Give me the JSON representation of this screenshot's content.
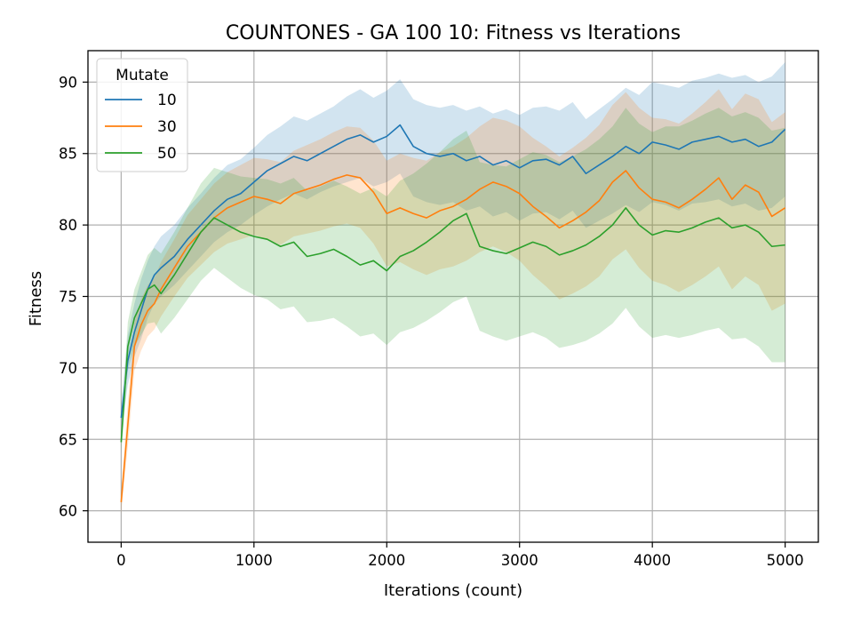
{
  "chart_data": {
    "type": "line",
    "title": "COUNTONES - GA 100 10: Fitness vs Iterations",
    "xlabel": "Iterations (count)",
    "ylabel": "Fitness",
    "xlim": [
      -250,
      5250
    ],
    "ylim": [
      57.8,
      92.2
    ],
    "xticks": [
      0,
      1000,
      2000,
      3000,
      4000,
      5000
    ],
    "yticks": [
      60,
      65,
      70,
      75,
      80,
      85,
      90
    ],
    "grid": true,
    "legend": {
      "title": "Mutate",
      "placement": "top-left"
    },
    "series": [
      {
        "name": "10",
        "color": "#1f77b4",
        "band_opacity": 0.2,
        "x": [
          0,
          50,
          100,
          150,
          200,
          250,
          300,
          400,
          500,
          600,
          700,
          800,
          900,
          1000,
          1100,
          1200,
          1300,
          1400,
          1500,
          1600,
          1700,
          1800,
          1900,
          2000,
          2100,
          2200,
          2300,
          2400,
          2500,
          2600,
          2700,
          2800,
          2900,
          3000,
          3100,
          3200,
          3300,
          3400,
          3500,
          3600,
          3700,
          3800,
          3900,
          4000,
          4100,
          4200,
          4300,
          4400,
          4500,
          4600,
          4700,
          4800,
          4900,
          5000
        ],
        "y": [
          66.5,
          70.5,
          72.5,
          74,
          75.5,
          76.5,
          77,
          77.8,
          79,
          80,
          81,
          81.8,
          82.2,
          83,
          83.8,
          84.3,
          84.8,
          84.5,
          85,
          85.5,
          86,
          86.3,
          85.8,
          86.2,
          87,
          85.5,
          85,
          84.8,
          85,
          84.5,
          84.8,
          84.2,
          84.5,
          84,
          84.5,
          84.6,
          84.2,
          84.8,
          83.6,
          84.2,
          84.8,
          85.5,
          85,
          85.8,
          85.6,
          85.3,
          85.8,
          86,
          86.2,
          85.8,
          86,
          85.5,
          85.8,
          86.7
        ],
        "band": [
          [
            65.5,
            67.5
          ],
          [
            68.8,
            72.3
          ],
          [
            70.8,
            74.5
          ],
          [
            72,
            76.2
          ],
          [
            73.5,
            77.5
          ],
          [
            74.5,
            78.5
          ],
          [
            75,
            79.2
          ],
          [
            75.8,
            80
          ],
          [
            76.8,
            81.2
          ],
          [
            77.8,
            82.2
          ],
          [
            78.8,
            83.3
          ],
          [
            79.5,
            84.2
          ],
          [
            80,
            84.6
          ],
          [
            80.7,
            85.4
          ],
          [
            81.3,
            86.3
          ],
          [
            81.8,
            86.9
          ],
          [
            82.2,
            87.6
          ],
          [
            81.8,
            87.3
          ],
          [
            82.3,
            87.8
          ],
          [
            82.7,
            88.3
          ],
          [
            83,
            89
          ],
          [
            83.3,
            89.5
          ],
          [
            82.7,
            88.9
          ],
          [
            83,
            89.4
          ],
          [
            83.6,
            90.2
          ],
          [
            82,
            88.8
          ],
          [
            81.6,
            88.4
          ],
          [
            81.4,
            88.2
          ],
          [
            81.6,
            88.4
          ],
          [
            81,
            88
          ],
          [
            81.3,
            88.3
          ],
          [
            80.6,
            87.8
          ],
          [
            80.9,
            88.1
          ],
          [
            80.3,
            87.7
          ],
          [
            80.8,
            88.2
          ],
          [
            80.9,
            88.3
          ],
          [
            80.4,
            88
          ],
          [
            81,
            88.6
          ],
          [
            79.8,
            87.4
          ],
          [
            80.3,
            88.1
          ],
          [
            80.8,
            88.8
          ],
          [
            81.4,
            89.6
          ],
          [
            80.9,
            89.1
          ],
          [
            81.6,
            90
          ],
          [
            81.4,
            89.8
          ],
          [
            81,
            89.6
          ],
          [
            81.5,
            90.1
          ],
          [
            81.6,
            90.3
          ],
          [
            81.8,
            90.6
          ],
          [
            81.3,
            90.3
          ],
          [
            81.5,
            90.5
          ],
          [
            81,
            90
          ],
          [
            81.2,
            90.4
          ],
          [
            82,
            91.4
          ]
        ]
      },
      {
        "name": "30",
        "color": "#ff7f0e",
        "band_opacity": 0.2,
        "x": [
          0,
          50,
          100,
          150,
          200,
          250,
          300,
          400,
          500,
          600,
          700,
          800,
          900,
          1000,
          1100,
          1200,
          1300,
          1400,
          1500,
          1600,
          1700,
          1800,
          1900,
          2000,
          2100,
          2200,
          2300,
          2400,
          2500,
          2600,
          2700,
          2800,
          2900,
          3000,
          3100,
          3200,
          3300,
          3400,
          3500,
          3600,
          3700,
          3800,
          3900,
          4000,
          4100,
          4200,
          4300,
          4400,
          4500,
          4600,
          4700,
          4800,
          4900,
          5000
        ],
        "y": [
          60.6,
          66,
          71.5,
          73,
          74,
          74.5,
          75.5,
          77,
          78.5,
          79.5,
          80.5,
          81.2,
          81.6,
          82,
          81.8,
          81.5,
          82.2,
          82.5,
          82.8,
          83.2,
          83.5,
          83.3,
          82.3,
          80.8,
          81.2,
          80.8,
          80.5,
          81,
          81.3,
          81.8,
          82.5,
          83,
          82.7,
          82.2,
          81.3,
          80.6,
          79.8,
          80.3,
          80.9,
          81.7,
          83,
          83.8,
          82.6,
          81.8,
          81.6,
          81.2,
          81.8,
          82.5,
          83.3,
          81.8,
          82.8,
          82.3,
          80.6,
          81.2
        ],
        "band": [
          [
            59.8,
            61.4
          ],
          [
            64.5,
            67.5
          ],
          [
            69.8,
            73.2
          ],
          [
            71.2,
            74.8
          ],
          [
            72.2,
            75.8
          ],
          [
            72.7,
            76.3
          ],
          [
            73.6,
            77.4
          ],
          [
            75,
            79
          ],
          [
            76.3,
            80.7
          ],
          [
            77.2,
            81.8
          ],
          [
            78.1,
            82.9
          ],
          [
            78.7,
            83.7
          ],
          [
            79,
            84.2
          ],
          [
            79.3,
            84.7
          ],
          [
            79,
            84.6
          ],
          [
            78.6,
            84.4
          ],
          [
            79.2,
            85.2
          ],
          [
            79.4,
            85.6
          ],
          [
            79.6,
            86
          ],
          [
            79.9,
            86.5
          ],
          [
            80.1,
            86.9
          ],
          [
            79.8,
            86.8
          ],
          [
            78.7,
            85.9
          ],
          [
            77.1,
            84.5
          ],
          [
            77.4,
            85
          ],
          [
            76.9,
            84.7
          ],
          [
            76.5,
            84.5
          ],
          [
            76.9,
            85.1
          ],
          [
            77.1,
            85.5
          ],
          [
            77.5,
            86.1
          ],
          [
            78.1,
            86.9
          ],
          [
            78.5,
            87.5
          ],
          [
            78.1,
            87.3
          ],
          [
            77.5,
            86.9
          ],
          [
            76.5,
            86.1
          ],
          [
            75.7,
            85.5
          ],
          [
            74.8,
            84.8
          ],
          [
            75.2,
            85.4
          ],
          [
            75.7,
            86.1
          ],
          [
            76.4,
            87
          ],
          [
            77.6,
            88.4
          ],
          [
            78.3,
            89.3
          ],
          [
            77,
            88.2
          ],
          [
            76.1,
            87.5
          ],
          [
            75.8,
            87.4
          ],
          [
            75.3,
            87.1
          ],
          [
            75.8,
            87.8
          ],
          [
            76.4,
            88.6
          ],
          [
            77.1,
            89.5
          ],
          [
            75.5,
            88.1
          ],
          [
            76.4,
            89.2
          ],
          [
            75.8,
            88.8
          ],
          [
            74,
            87.2
          ],
          [
            74.5,
            87.9
          ]
        ]
      },
      {
        "name": "50",
        "color": "#2ca02c",
        "band_opacity": 0.2,
        "x": [
          0,
          50,
          100,
          150,
          200,
          250,
          300,
          400,
          500,
          600,
          700,
          800,
          900,
          1000,
          1100,
          1200,
          1300,
          1400,
          1500,
          1600,
          1700,
          1800,
          1900,
          2000,
          2100,
          2200,
          2300,
          2400,
          2500,
          2600,
          2700,
          2800,
          2900,
          3000,
          3100,
          3200,
          3300,
          3400,
          3500,
          3600,
          3700,
          3800,
          3900,
          4000,
          4100,
          4200,
          4300,
          4400,
          4500,
          4600,
          4700,
          4800,
          4900,
          5000
        ],
        "y": [
          64.8,
          71.5,
          73.5,
          74.5,
          75.5,
          75.8,
          75.2,
          76.5,
          78,
          79.5,
          80.5,
          80,
          79.5,
          79.2,
          79,
          78.5,
          78.8,
          77.8,
          78,
          78.3,
          77.8,
          77.2,
          77.5,
          76.8,
          77.8,
          78.2,
          78.8,
          79.5,
          80.3,
          80.8,
          78.5,
          78.2,
          78,
          78.4,
          78.8,
          78.5,
          77.9,
          78.2,
          78.6,
          79.2,
          80,
          81.2,
          80,
          79.3,
          79.6,
          79.5,
          79.8,
          80.2,
          80.5,
          79.8,
          80,
          79.5,
          78.5,
          78.6
        ],
        "band": [
          [
            64,
            65.6
          ],
          [
            69.8,
            73.2
          ],
          [
            71.5,
            75.5
          ],
          [
            72.3,
            76.7
          ],
          [
            73.1,
            77.9
          ],
          [
            73.2,
            78.4
          ],
          [
            72.4,
            78
          ],
          [
            73.5,
            79.5
          ],
          [
            74.8,
            81.2
          ],
          [
            76.1,
            82.9
          ],
          [
            77,
            84
          ],
          [
            76.3,
            83.7
          ],
          [
            75.6,
            83.4
          ],
          [
            75.1,
            83.3
          ],
          [
            74.8,
            83.2
          ],
          [
            74.1,
            82.9
          ],
          [
            74.3,
            83.3
          ],
          [
            73.2,
            82.4
          ],
          [
            73.3,
            82.7
          ],
          [
            73.5,
            83.1
          ],
          [
            72.9,
            82.7
          ],
          [
            72.2,
            82.2
          ],
          [
            72.4,
            82.6
          ],
          [
            71.6,
            82
          ],
          [
            72.5,
            83.1
          ],
          [
            72.8,
            83.6
          ],
          [
            73.3,
            84.3
          ],
          [
            73.9,
            85.1
          ],
          [
            74.6,
            86
          ],
          [
            75,
            86.6
          ],
          [
            72.6,
            84.4
          ],
          [
            72.2,
            84.2
          ],
          [
            71.9,
            84.1
          ],
          [
            72.2,
            84.6
          ],
          [
            72.5,
            85.1
          ],
          [
            72.1,
            84.9
          ],
          [
            71.4,
            84.4
          ],
          [
            71.6,
            84.8
          ],
          [
            71.9,
            85.3
          ],
          [
            72.4,
            86
          ],
          [
            73.1,
            86.9
          ],
          [
            74.2,
            88.2
          ],
          [
            72.9,
            87.1
          ],
          [
            72.1,
            86.5
          ],
          [
            72.3,
            86.9
          ],
          [
            72.1,
            86.9
          ],
          [
            72.3,
            87.3
          ],
          [
            72.6,
            87.8
          ],
          [
            72.8,
            88.2
          ],
          [
            72,
            87.6
          ],
          [
            72.1,
            87.9
          ],
          [
            71.5,
            87.5
          ],
          [
            70.4,
            86.6
          ],
          [
            70.4,
            86.8
          ]
        ]
      }
    ]
  }
}
